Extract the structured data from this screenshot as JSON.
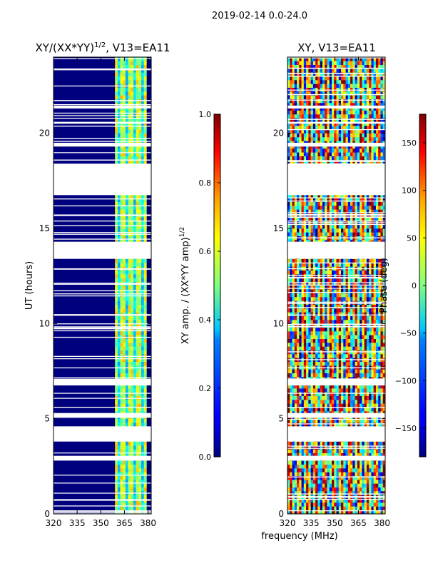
{
  "figure": {
    "suptitle": "2019-02-14 0.0-24.0",
    "xlabel_shared": "frequency (MHz)"
  },
  "chart_data": [
    {
      "type": "heatmap",
      "title": "XY/(XX*YY)",
      "title_exponent": "1/2",
      "title_suffix": ", V13=EA11",
      "xlabel": "",
      "ylabel": "UT (hours)",
      "xlim": [
        320,
        382
      ],
      "ylim": [
        0,
        24
      ],
      "xticks": [
        320,
        335,
        350,
        365,
        380
      ],
      "yticks": [
        0,
        5,
        10,
        15,
        20
      ],
      "xtick_labels": [
        "320",
        "335",
        "350",
        "365",
        "380"
      ],
      "ytick_labels": [
        "0",
        "5",
        "10",
        "15",
        "20"
      ],
      "bright_band_mhz": [
        359,
        379
      ],
      "colorbar": {
        "label": "XY amp. / (XX*YY amp)",
        "label_exponent": "1/2",
        "range": [
          0.0,
          1.0
        ],
        "ticks": [
          0.0,
          0.2,
          0.4,
          0.6,
          0.8,
          1.0
        ],
        "tick_labels": [
          "0.0",
          "0.2",
          "0.4",
          "0.6",
          "0.8",
          "1.0"
        ],
        "colormap": "jet"
      },
      "flagged_hours": [
        [
          2.8,
          3.05
        ],
        [
          3.8,
          4.6
        ],
        [
          5.05,
          5.3
        ],
        [
          6.75,
          7.1
        ],
        [
          13.4,
          14.3
        ],
        [
          16.75,
          18.4
        ],
        [
          19.3,
          19.5
        ],
        [
          20.5,
          20.6
        ],
        [
          21.3,
          21.45
        ]
      ]
    },
    {
      "type": "heatmap",
      "title": "XY, V13=EA11",
      "xlabel": "frequency (MHz)",
      "ylabel": "",
      "xlim": [
        320,
        382
      ],
      "ylim": [
        0,
        24
      ],
      "xticks": [
        320,
        335,
        350,
        365,
        380
      ],
      "yticks": [
        0,
        5,
        10,
        15,
        20
      ],
      "xtick_labels": [
        "320",
        "335",
        "350",
        "365",
        "380"
      ],
      "ytick_labels": [
        "0",
        "5",
        "10",
        "15",
        "20"
      ],
      "colorbar": {
        "label": "Phase (deg)",
        "range": [
          -180,
          180
        ],
        "ticks": [
          -150,
          -100,
          -50,
          0,
          50,
          100,
          150
        ],
        "tick_labels": [
          "−150",
          "−100",
          "−50",
          "0",
          "50",
          "100",
          "150"
        ],
        "colormap": "jet"
      },
      "flagged_hours": [
        [
          2.8,
          3.05
        ],
        [
          3.8,
          4.6
        ],
        [
          5.05,
          5.3
        ],
        [
          6.75,
          7.1
        ],
        [
          13.4,
          14.3
        ],
        [
          16.75,
          18.4
        ],
        [
          19.3,
          19.5
        ],
        [
          20.5,
          20.6
        ],
        [
          21.3,
          21.45
        ]
      ]
    }
  ]
}
